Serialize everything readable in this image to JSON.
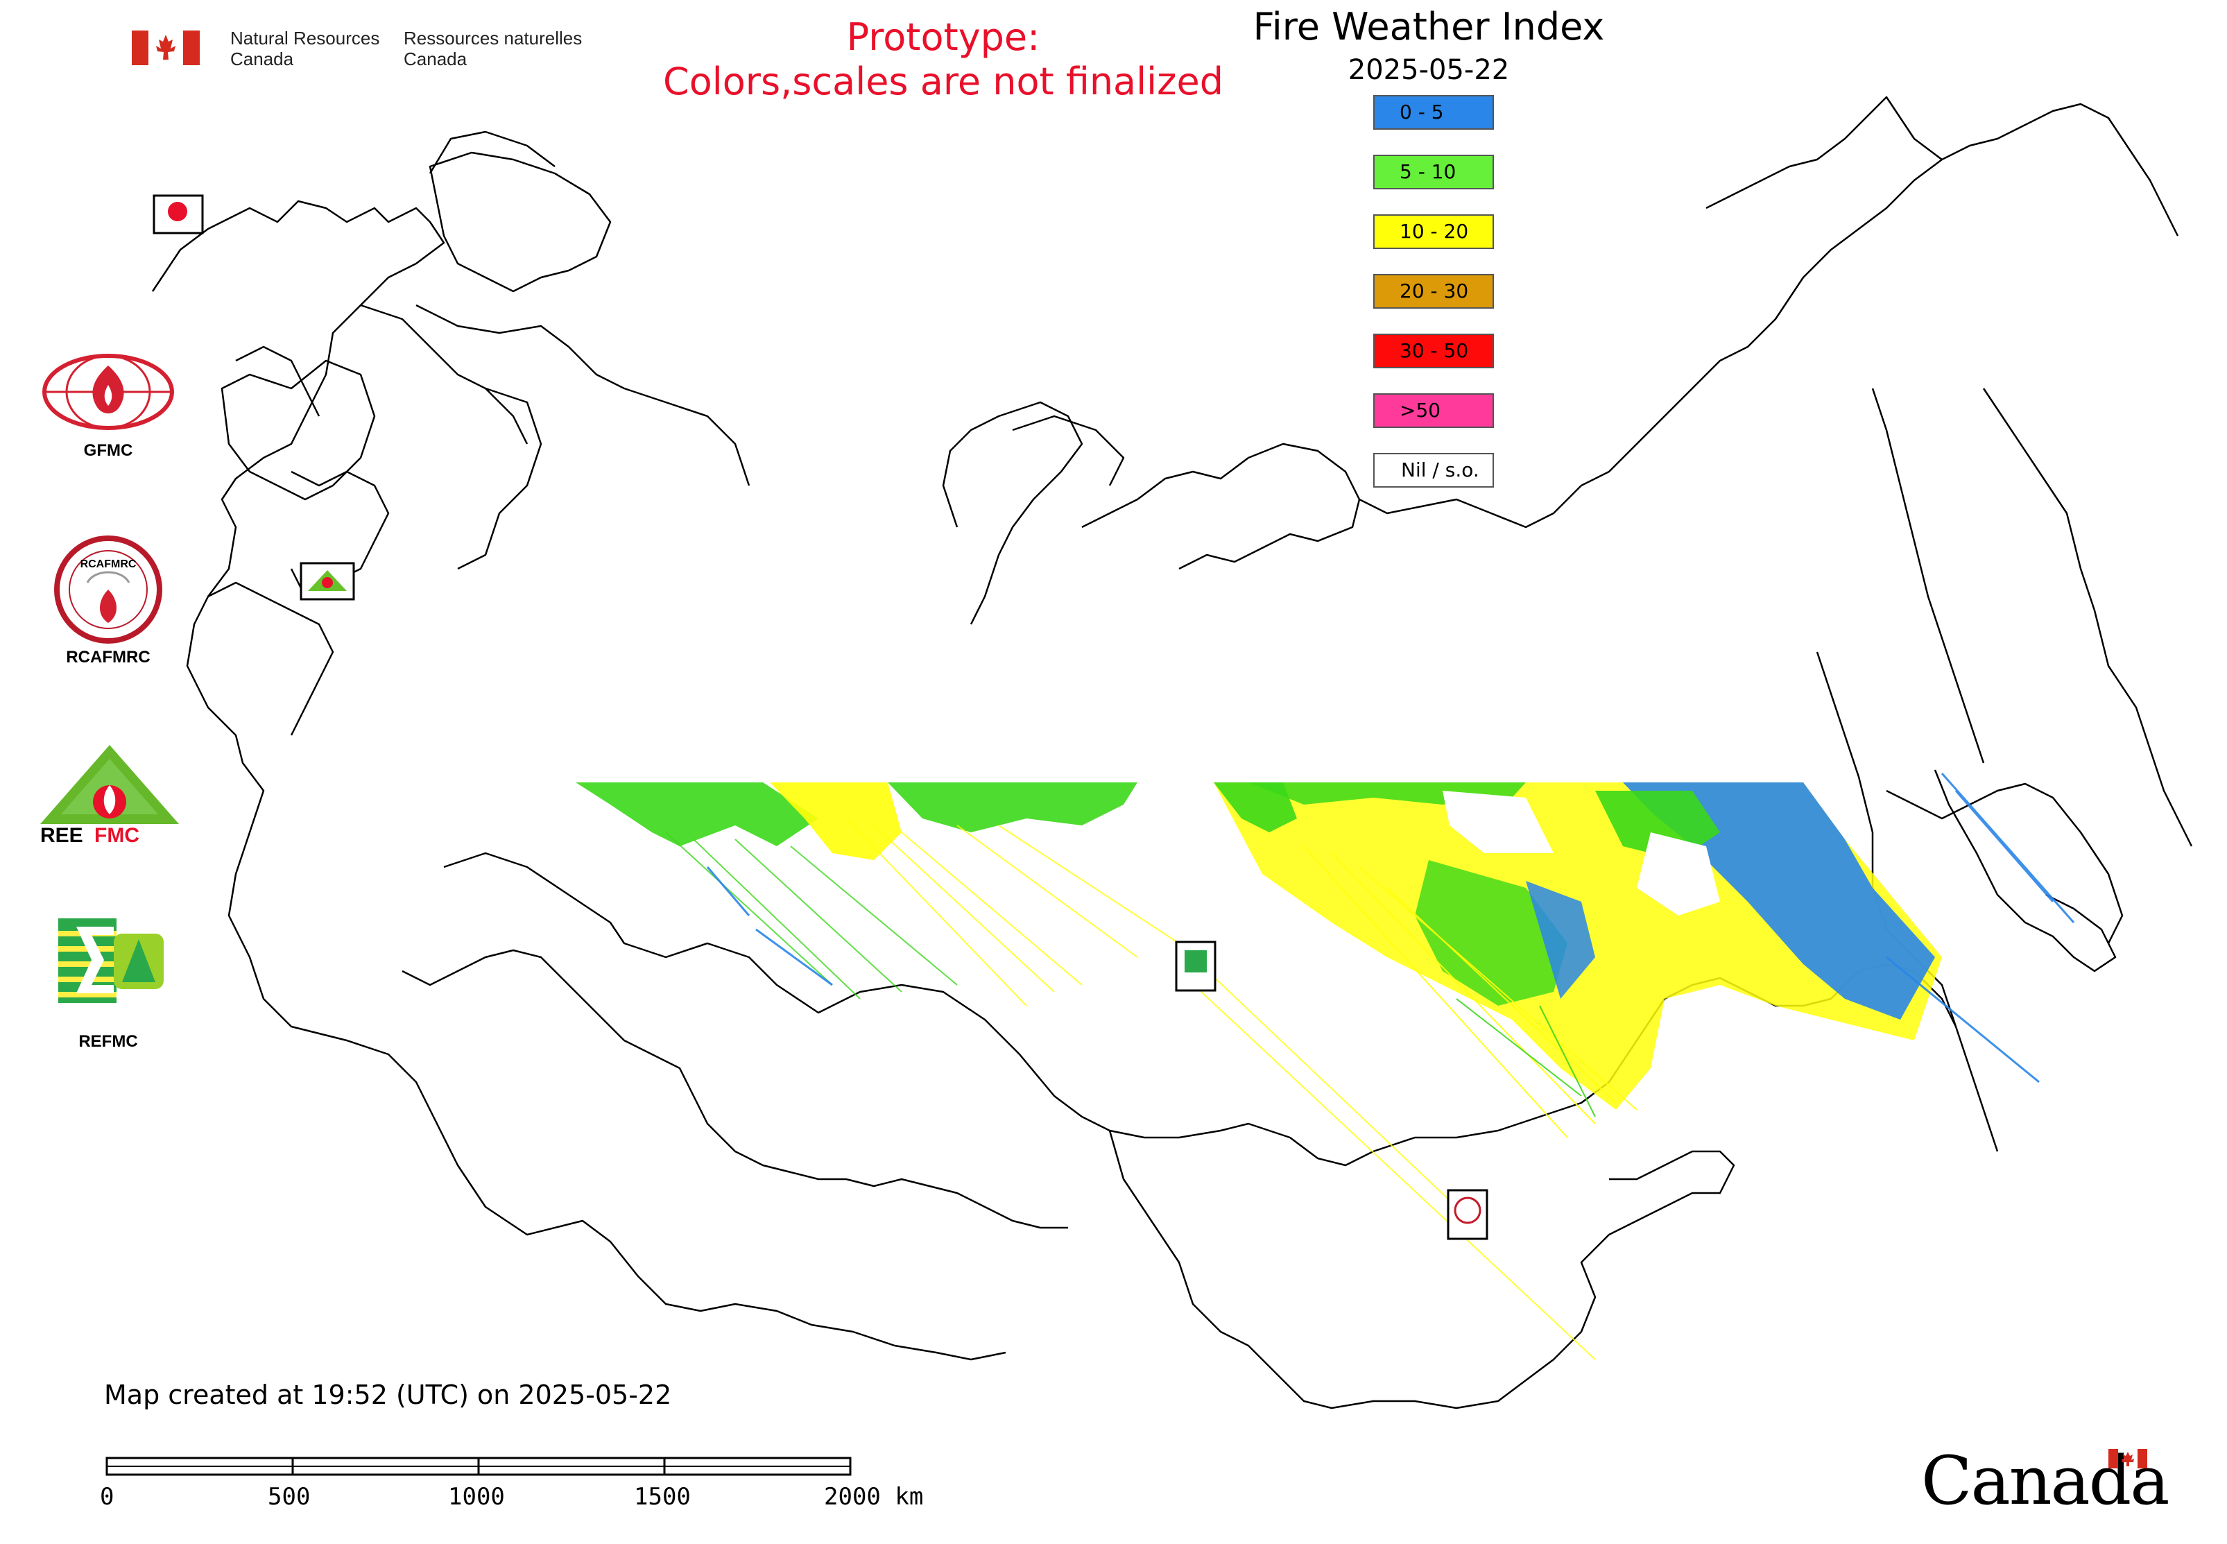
{
  "header": {
    "dept_en_line1": "Natural Resources",
    "dept_en_line2": "Canada",
    "dept_fr_line1": "Ressources naturelles",
    "dept_fr_line2": "Canada"
  },
  "notice": {
    "line1": "Prototype:",
    "line2": "Colors,scales are not finalized",
    "color": "#e8102a"
  },
  "title": "Fire Weather Index",
  "date": "2025-05-22",
  "legend": [
    {
      "label": "0 - 5",
      "color": "#2a86e8"
    },
    {
      "label": "5 - 10",
      "color": "#66f03a"
    },
    {
      "label": "10 - 20",
      "color": "#ffff0a"
    },
    {
      "label": "20 - 30",
      "color": "#dc9a08"
    },
    {
      "label": "30 - 50",
      "color": "#ff0a0a"
    },
    {
      "label": ">50",
      "color": "#ff3a9a"
    },
    {
      "label": "Nil / s.o.",
      "color": "#ffffff"
    }
  ],
  "logos": [
    {
      "name": "GFMC",
      "label": "GFMC"
    },
    {
      "name": "RCAFMRC",
      "label": "RCAFMRC"
    },
    {
      "name": "REEFMC",
      "label": ""
    },
    {
      "name": "REFMC",
      "label": "REFMC"
    }
  ],
  "map_markers": [
    "GFMC",
    "REEFMC",
    "REFMC",
    "RCAFMRC"
  ],
  "footer": {
    "created": "Map created at 19:52 (UTC) on 2025-05-22",
    "scale_ticks": [
      "0",
      "500",
      "1000",
      "1500",
      "2000 km"
    ],
    "wordmark": "Canada"
  }
}
